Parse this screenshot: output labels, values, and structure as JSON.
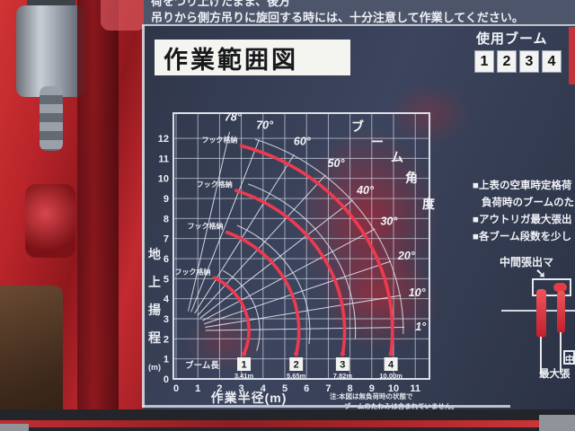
{
  "colors": {
    "machinery_red": "#c1272d",
    "curve_red": "#ee3a50",
    "plate_navy": "#343c52",
    "title_bg": "#f4f4f1"
  },
  "warning_strip": {
    "line1": "荷をつり上げたまま、後方",
    "line2": "吊りから側方吊りに旋回する時には、十分注意して作業してください。"
  },
  "title": "作業範囲図",
  "right_panel": {
    "boom_use_header": "使用ブーム",
    "boom_numbers": [
      "1",
      "2",
      "3",
      "4"
    ],
    "notes": [
      "■上表の空車時定格荷",
      "負荷時のブームのた",
      "■アウトリガ最大張出",
      "■各ブーム段数を少し"
    ],
    "mid_extension_label": "中間張出マ",
    "arrow_glyph": "➘",
    "bottom_box_label": "中",
    "bottom_label": "最大張"
  },
  "chart_data": {
    "type": "line",
    "title": "作業範囲図",
    "xlabel": "作業半径(m)",
    "ylabel_main": "地上揚程",
    "ylabel_unit": "(m)",
    "angle_axis_label": "ブーム角度",
    "xlim": [
      0,
      11
    ],
    "ylim": [
      0,
      12
    ],
    "x_ticks": [
      0,
      1,
      2,
      3,
      4,
      5,
      6,
      7,
      8,
      9,
      10,
      11
    ],
    "y_ticks": [
      0,
      1,
      2,
      3,
      4,
      5,
      6,
      7,
      8,
      9,
      10,
      11,
      12
    ],
    "grid": true,
    "angle_lines_deg": [
      78,
      70,
      60,
      50,
      40,
      30,
      20,
      10,
      1
    ],
    "pivot": {
      "x": 0.35,
      "y": 2.4
    },
    "curve_color": "#ee3a50",
    "hook_stowed_label": "フック格納",
    "boom_length_label": "ブーム長",
    "booms": [
      {
        "no": "1",
        "length_m": 3.41,
        "length_label": "3.41m",
        "plot_radius_m": 3.0,
        "start_deg": 62
      },
      {
        "no": "2",
        "length_m": 5.65,
        "length_label": "5.65m",
        "plot_radius_m": 5.3,
        "start_deg": 68
      },
      {
        "no": "3",
        "length_m": 7.82,
        "length_label": "7.82m",
        "plot_radius_m": 7.4,
        "start_deg": 71
      },
      {
        "no": "4",
        "length_m": 10.0,
        "length_label": "10.00m",
        "plot_radius_m": 9.6,
        "start_deg": 74
      }
    ],
    "note": [
      "注:本図は無負荷時の状態で",
      "ブームのたわみは含まれていません。"
    ]
  }
}
